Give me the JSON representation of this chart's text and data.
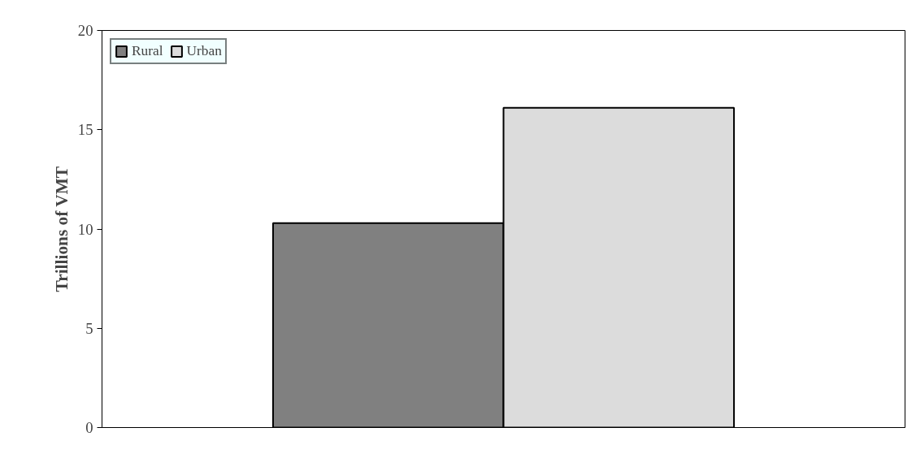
{
  "chart_data": {
    "type": "bar",
    "ylabel": "Trillions of VMT",
    "categories": [
      null
    ],
    "series": [
      {
        "name": "Rural",
        "color": "#808080",
        "values": [
          10.3
        ]
      },
      {
        "name": "Urban",
        "color": "#dcdcdc",
        "values": [
          16.1
        ]
      }
    ],
    "ylim": [
      0,
      20
    ],
    "yticks": [
      0,
      5,
      10,
      15,
      20
    ],
    "grid": false,
    "legend": "top left"
  }
}
